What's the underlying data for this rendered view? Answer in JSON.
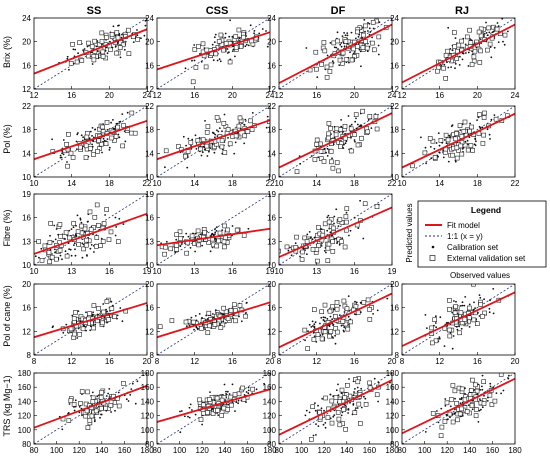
{
  "chart_data": {
    "type": "scatter",
    "columns": [
      "SS",
      "CSS",
      "DF",
      "RJ"
    ],
    "rows": [
      {
        "ylabel": "Brix (%)",
        "xlim": [
          12,
          24
        ],
        "ylim": [
          12,
          24
        ],
        "xticks": [
          "12",
          "16",
          "20",
          "24"
        ],
        "yticks": [
          "12",
          "16",
          "20",
          "24"
        ],
        "xtick_values": [
          12,
          16,
          20,
          24
        ],
        "ytick_values": [
          12,
          16,
          20,
          24
        ],
        "panels": [
          {
            "fit": [
              [
                12,
                14.6
              ],
              [
                24,
                22.1
              ]
            ],
            "center": [
              19.2,
              19.1
            ],
            "spread": [
              2.0,
              1.2
            ]
          },
          {
            "fit": [
              [
                12,
                15.3
              ],
              [
                24,
                21.6
              ]
            ],
            "center": [
              19.1,
              19.2
            ],
            "spread": [
              2.0,
              1.1
            ]
          },
          {
            "fit": [
              [
                12,
                13.0
              ],
              [
                24,
                22.9
              ]
            ],
            "center": [
              19.5,
              19.3
            ],
            "spread": [
              1.9,
              1.5
            ]
          },
          {
            "fit": [
              [
                12,
                13.1
              ],
              [
                24,
                22.9
              ]
            ],
            "center": [
              19.4,
              19.4
            ],
            "spread": [
              1.9,
              1.5
            ]
          }
        ]
      },
      {
        "ylabel": "Pol (%)",
        "xlim": [
          10,
          22
        ],
        "ylim": [
          10,
          22
        ],
        "xticks": [
          "10",
          "14",
          "18",
          "22"
        ],
        "yticks": [
          "10",
          "14",
          "18",
          "22"
        ],
        "xtick_values": [
          10,
          14,
          18,
          22
        ],
        "ytick_values": [
          10,
          14,
          18,
          22
        ],
        "panels": [
          {
            "fit": [
              [
                10,
                13.0
              ],
              [
                22,
                19.5
              ]
            ],
            "center": [
              16.4,
              16.5
            ],
            "spread": [
              2.0,
              1.2
            ]
          },
          {
            "fit": [
              [
                10,
                13.0
              ],
              [
                22,
                19.6
              ]
            ],
            "center": [
              16.3,
              16.3
            ],
            "spread": [
              2.0,
              1.3
            ]
          },
          {
            "fit": [
              [
                10,
                11.6
              ],
              [
                22,
                20.8
              ]
            ],
            "center": [
              16.5,
              16.4
            ],
            "spread": [
              2.0,
              1.5
            ]
          },
          {
            "fit": [
              [
                10,
                11.6
              ],
              [
                22,
                20.7
              ]
            ],
            "center": [
              16.5,
              16.5
            ],
            "spread": [
              2.0,
              1.5
            ]
          }
        ]
      },
      {
        "ylabel": "Fibre (%)",
        "xlim": [
          10,
          19
        ],
        "ylim": [
          10,
          19
        ],
        "xticks": [
          "10",
          "13",
          "16",
          "19"
        ],
        "yticks": [
          "10",
          "13",
          "16",
          "19"
        ],
        "xtick_values": [
          10,
          13,
          16,
          19
        ],
        "ytick_values": [
          10,
          13,
          16,
          19
        ],
        "panels": [
          {
            "fit": [
              [
                10,
                11.4
              ],
              [
                19,
                16.5
              ]
            ],
            "center": [
              13.5,
              13.4
            ],
            "spread": [
              1.6,
              1.2
            ]
          },
          {
            "fit": [
              [
                10,
                12.5
              ],
              [
                19,
                14.6
              ]
            ],
            "center": [
              13.6,
              13.2
            ],
            "spread": [
              1.5,
              0.6
            ]
          },
          {
            "fit": [
              [
                10,
                11.0
              ],
              [
                19,
                17.3
              ]
            ],
            "center": [
              13.4,
              13.3
            ],
            "spread": [
              1.6,
              1.2
            ]
          }
        ]
      },
      {
        "ylabel": "Pol of cane (%)",
        "xlim": [
          8,
          20
        ],
        "ylim": [
          8,
          20
        ],
        "xticks": [
          "8",
          "12",
          "16",
          "20"
        ],
        "yticks": [
          "8",
          "12",
          "16",
          "20"
        ],
        "xtick_values": [
          8,
          12,
          16,
          20
        ],
        "ytick_values": [
          8,
          12,
          16,
          20
        ],
        "panels": [
          {
            "fit": [
              [
                8,
                11.0
              ],
              [
                20,
                16.8
              ]
            ],
            "center": [
              14.0,
              14.0
            ],
            "spread": [
              1.6,
              0.9
            ]
          },
          {
            "fit": [
              [
                8,
                11.0
              ],
              [
                20,
                16.9
              ]
            ],
            "center": [
              14.0,
              14.0
            ],
            "spread": [
              1.6,
              0.9
            ]
          },
          {
            "fit": [
              [
                8,
                9.3
              ],
              [
                20,
                18.4
              ]
            ],
            "center": [
              14.0,
              14.0
            ],
            "spread": [
              1.8,
              1.5
            ]
          },
          {
            "fit": [
              [
                8,
                9.5
              ],
              [
                20,
                18.6
              ]
            ],
            "center": [
              14.0,
              14.1
            ],
            "spread": [
              1.8,
              1.5
            ]
          }
        ]
      },
      {
        "ylabel": "TRS (kg Mg−1)",
        "xlim": [
          80,
          180
        ],
        "ylim": [
          80,
          180
        ],
        "xticks": [
          "80",
          "100",
          "120",
          "140",
          "160",
          "180"
        ],
        "yticks": [
          "80",
          "100",
          "120",
          "140",
          "160",
          "180"
        ],
        "xtick_values": [
          80,
          100,
          120,
          140,
          160,
          180
        ],
        "ytick_values": [
          80,
          100,
          120,
          140,
          160,
          180
        ],
        "panels": [
          {
            "fit": [
              [
                80,
                103
              ],
              [
                180,
                162
              ]
            ],
            "center": [
              138,
              137
            ],
            "spread": [
              15,
              10
            ]
          },
          {
            "fit": [
              [
                80,
                111
              ],
              [
                180,
                157
              ]
            ],
            "center": [
              138,
              136
            ],
            "spread": [
              15,
              9
            ]
          },
          {
            "fit": [
              [
                80,
                93
              ],
              [
                180,
                170
              ]
            ],
            "center": [
              137,
              136
            ],
            "spread": [
              15,
              13
            ]
          },
          {
            "fit": [
              [
                80,
                95
              ],
              [
                180,
                172
              ]
            ],
            "center": [
              137,
              137
            ],
            "spread": [
              15,
              13
            ]
          }
        ]
      }
    ],
    "legend": {
      "title": "Legend",
      "items": [
        "Fit model",
        "1:1 (x = y)",
        "Calibration set",
        "External validation set"
      ],
      "ylabel": "Predicted values",
      "xlabel": "Observed values",
      "placement": "row 3, column RJ"
    },
    "series_styles": {
      "fit_color": "#e0151b",
      "identity_color": "#1f2f7a",
      "calibration_color": "#111111",
      "validation_fill": "#ffffff",
      "validation_edge": "#222222"
    }
  }
}
